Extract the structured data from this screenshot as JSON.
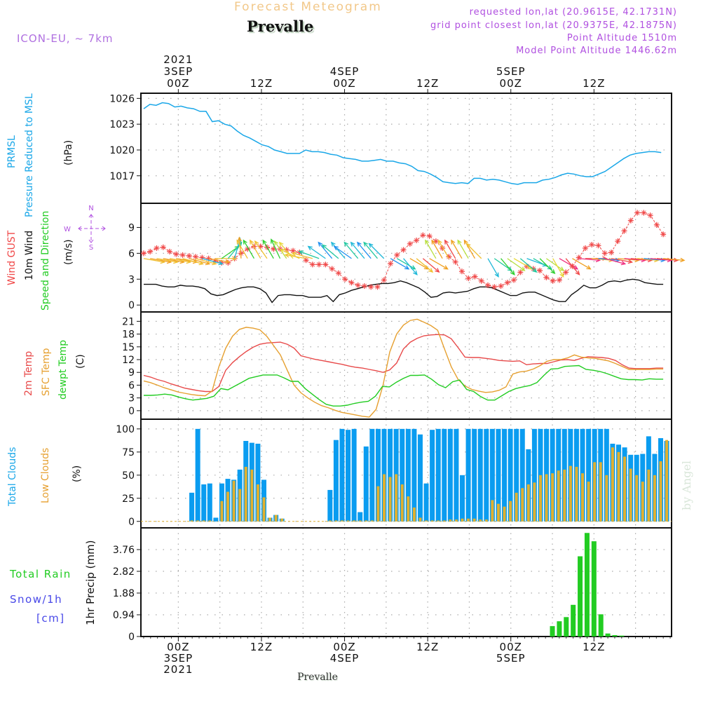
{
  "header": {
    "title": "Forecast Meteogram",
    "station": "Prevalle",
    "model": "ICON-EU, ~ 7km",
    "requested": "requested lon,lat (20.9615E, 42.1731N)",
    "gridpoint": "grid point closest lon,lat (20.9375E, 42.1875N)",
    "point_altitude": "Point Altitude 1510m",
    "model_altitude": "Model Point Altitude 1446.62m"
  },
  "time_axis": {
    "top_labels": [
      {
        "hour": 0,
        "lines": [
          "2021",
          "3SEP",
          "00Z"
        ]
      },
      {
        "hour": 12,
        "lines": [
          "12Z"
        ]
      },
      {
        "hour": 24,
        "lines": [
          "4SEP",
          "00Z"
        ]
      },
      {
        "hour": 36,
        "lines": [
          "12Z"
        ]
      },
      {
        "hour": 48,
        "lines": [
          "5SEP",
          "00Z"
        ]
      },
      {
        "hour": 60,
        "lines": [
          "12Z"
        ]
      }
    ],
    "bottom_labels": [
      {
        "hour": 0,
        "lines": [
          "00Z",
          "3SEP",
          "2021"
        ]
      },
      {
        "hour": 12,
        "lines": [
          "12Z"
        ]
      },
      {
        "hour": 24,
        "lines": [
          "00Z",
          "4SEP"
        ]
      },
      {
        "hour": 36,
        "lines": [
          "12Z"
        ]
      },
      {
        "hour": 48,
        "lines": [
          "00Z",
          "5SEP"
        ]
      },
      {
        "hour": 60,
        "lines": [
          "12Z"
        ]
      }
    ],
    "first_hour": -5,
    "last_hour": 70,
    "axis_range_hours": [
      -5.4,
      71.2
    ]
  },
  "labels": {
    "pressure": {
      "line1": "PRMSL",
      "line2": "Pressure Reduced to MSL",
      "unit": "(hPa)",
      "color": "#1aa7e8"
    },
    "wind": {
      "gust": "Wind GUST",
      "wind10": "10m Wind",
      "speeddir": "Speed and Direction",
      "unit": "(m/s)",
      "compass": {
        "n": "N",
        "s": "S",
        "w": "W",
        "e": "E"
      }
    },
    "temp": {
      "t2m": "2m Temp",
      "sfc": "SFC Temp",
      "dewpt": "dewpt Temp",
      "unit": "(C)"
    },
    "clouds": {
      "total": "Total Clouds",
      "low": "Low Clouds",
      "unit": "(%)"
    },
    "precip": {
      "rain": "Total   Rain",
      "snow": "Snow/1h",
      "snowunit": "[cm]",
      "axis": "1hr Precip (mm)"
    },
    "footer": "Prevalle",
    "credit": "by Angel"
  },
  "colors": {
    "pressure": "#1aa7e8",
    "gust": "#f04848",
    "wind10": "#111111",
    "t2m": "#e84a4a",
    "sfc": "#e6a030",
    "dewpt": "#22cc22",
    "total_clouds": "#0a9cf0",
    "low_clouds": "#e0b030",
    "rain": "#22cc22",
    "snow": "#4848e8",
    "info": "#b050e0"
  },
  "chart_data": [
    {
      "type": "line",
      "title": "PRMSL Pressure Reduced to MSL",
      "ylabel": "(hPa)",
      "yticks": [
        1017,
        1020,
        1023,
        1026
      ],
      "ylim": [
        1013.8,
        1026.6
      ],
      "series": [
        {
          "name": "PRMSL",
          "values": [
            1024.8,
            1025.3,
            1025.2,
            1025.5,
            1025.4,
            1025.0,
            1025.1,
            1024.9,
            1024.8,
            1024.5,
            1024.5,
            1023.3,
            1023.4,
            1023.0,
            1022.8,
            1022.2,
            1021.7,
            1021.4,
            1021.0,
            1020.6,
            1020.4,
            1020.0,
            1019.8,
            1019.6,
            1019.6,
            1019.6,
            1020.0,
            1019.8,
            1019.8,
            1019.7,
            1019.5,
            1019.4,
            1019.1,
            1019.0,
            1018.9,
            1018.7,
            1018.7,
            1018.8,
            1018.9,
            1018.7,
            1018.7,
            1018.5,
            1018.4,
            1018.1,
            1017.6,
            1017.5,
            1017.2,
            1016.8,
            1016.3,
            1016.2,
            1016.1,
            1016.2,
            1016.1,
            1016.7,
            1016.7,
            1016.5,
            1016.6,
            1016.5,
            1016.3,
            1016.1,
            1016.0,
            1016.2,
            1016.2,
            1016.2,
            1016.5,
            1016.6,
            1016.8,
            1017.1,
            1017.3,
            1017.2,
            1017.0,
            1016.9,
            1016.9,
            1017.2,
            1017.5,
            1018.0,
            1018.5,
            1019.0,
            1019.4,
            1019.6,
            1019.7,
            1019.8,
            1019.8,
            1019.7
          ],
          "x_hours_start": -5,
          "x_step_hours": 0.9
        }
      ]
    },
    {
      "type": "line",
      "title": "Wind GUST / 10m Wind Speed and Direction",
      "ylabel": "(m/s)",
      "yticks": [
        0,
        3,
        6,
        9
      ],
      "ylim": [
        -0.8,
        11.8
      ],
      "series": [
        {
          "name": "Wind GUST",
          "values": [
            6.0,
            6.2,
            6.6,
            6.7,
            6.2,
            5.9,
            5.8,
            5.7,
            5.6,
            5.5,
            5.4,
            5.1,
            4.9,
            4.9,
            5.4,
            6.0,
            6.5,
            6.8,
            6.8,
            6.7,
            6.5,
            6.5,
            6.4,
            6.3,
            6.1,
            5.2,
            4.7,
            4.7,
            4.7,
            4.2,
            3.7,
            3.0,
            2.6,
            2.3,
            2.2,
            2.1,
            2.1,
            2.9,
            4.8,
            5.8,
            6.4,
            7.1,
            7.5,
            8.1,
            8.0,
            7.4,
            6.6,
            5.6,
            5.0,
            3.9,
            3.1,
            3.3,
            2.8,
            2.3,
            2.1,
            2.2,
            2.6,
            2.9,
            3.8,
            4.5,
            4.2,
            4.0,
            3.2,
            2.8,
            2.9,
            3.8,
            4.5,
            5.5,
            6.6,
            7.0,
            6.9,
            6.0,
            6.1,
            7.4,
            8.6,
            9.8,
            10.7,
            10.7,
            10.4,
            9.3,
            8.2
          ]
        },
        {
          "name": "10m Wind",
          "values": [
            2.4,
            2.4,
            2.4,
            2.2,
            2.1,
            2.1,
            2.3,
            2.2,
            2.2,
            2.1,
            1.9,
            1.3,
            1.1,
            1.2,
            1.5,
            1.8,
            2.0,
            2.1,
            2.1,
            1.9,
            1.4,
            0.3,
            1.1,
            1.2,
            1.2,
            1.1,
            1.1,
            0.9,
            0.9,
            0.9,
            1.1,
            0.4,
            1.2,
            1.4,
            1.7,
            1.9,
            2.1,
            2.3,
            2.4,
            2.5,
            2.5,
            2.6,
            2.8,
            2.6,
            2.3,
            2.0,
            1.5,
            0.9,
            1.0,
            1.4,
            1.5,
            1.4,
            1.5,
            1.6,
            1.9,
            2.1,
            2.1,
            2.0,
            1.7,
            1.4,
            1.1,
            1.1,
            1.4,
            1.5,
            1.5,
            1.2,
            0.9,
            0.6,
            0.4,
            0.4,
            1.2,
            1.7,
            2.3,
            2.0,
            2.0,
            2.3,
            2.7,
            2.8,
            2.7,
            2.9,
            3.0,
            2.9,
            2.6,
            2.5,
            2.4,
            2.4
          ]
        }
      ],
      "arrows_note": "Colored wind direction arrows along the 10m wind level; colors vary by speed (yellow/orange → green/cyan → blue/magenta)",
      "arrow_directions_deg": [
        280,
        280,
        280,
        280,
        280,
        280,
        285,
        285,
        285,
        285,
        280,
        270,
        235,
        220,
        195,
        175,
        150,
        150,
        150,
        145,
        150,
        155,
        145,
        140,
        115,
        100,
        105,
        110,
        125,
        140,
        130,
        140,
        125,
        140,
        140,
        140,
        140,
        135,
        300,
        300,
        320,
        300,
        310,
        310,
        300,
        150,
        150,
        150,
        150,
        150,
        150,
        150,
        135,
        330,
        305,
        320,
        305,
        300,
        310,
        290,
        300,
        315,
        305,
        330,
        300,
        320,
        300,
        275,
        270,
        275,
        275,
        285,
        280,
        275,
        275,
        275,
        275,
        275,
        275,
        275,
        275
      ]
    },
    {
      "type": "line",
      "title": "2m Temp / SFC Temp / dewpt Temp",
      "ylabel": "(C)",
      "yticks": [
        0,
        3,
        6,
        9,
        12,
        15,
        18,
        21
      ],
      "ylim": [
        -2,
        23
      ],
      "series": [
        {
          "name": "2m Temp",
          "values": [
            8.3,
            7.9,
            7.3,
            6.9,
            6.3,
            5.8,
            5.3,
            5.0,
            4.7,
            4.5,
            4.5,
            5.7,
            9.5,
            11.3,
            12.7,
            13.9,
            14.9,
            15.6,
            15.9,
            16.0,
            16.1,
            15.6,
            14.7,
            12.9,
            12.5,
            12.1,
            11.8,
            11.5,
            11.2,
            10.9,
            10.5,
            10.2,
            10.0,
            9.7,
            9.4,
            9.0,
            9.6,
            11.2,
            14.5,
            16.1,
            17.0,
            17.6,
            17.8,
            17.9,
            17.8,
            16.9,
            14.8,
            12.6,
            12.5,
            12.5,
            12.3,
            12.1,
            11.8,
            11.7,
            11.6,
            11.7,
            10.8,
            11.0,
            11.1,
            11.1,
            11.5,
            11.9,
            12.0,
            11.8,
            12.3,
            12.7,
            12.6,
            12.5,
            12.3,
            11.8,
            10.8,
            10.0,
            9.9,
            9.9,
            9.9,
            10.0,
            10.0
          ]
        },
        {
          "name": "SFC Temp",
          "values": [
            7.0,
            6.6,
            6.0,
            5.4,
            4.9,
            4.4,
            4.1,
            3.8,
            3.6,
            3.5,
            4.6,
            10.3,
            14.7,
            17.5,
            19.1,
            19.6,
            19.4,
            19.0,
            17.5,
            15.3,
            13.1,
            9.5,
            6.0,
            4.2,
            3.0,
            2.0,
            1.2,
            0.7,
            0.1,
            -0.4,
            -0.7,
            -1.0,
            -1.3,
            -1.5,
            0.3,
            5.9,
            13.8,
            18.0,
            20.1,
            21.2,
            21.5,
            20.8,
            20.0,
            18.9,
            14.5,
            10.3,
            7.3,
            5.8,
            5.0,
            4.6,
            4.3,
            4.4,
            4.8,
            5.6,
            8.6,
            9.1,
            9.3,
            9.8,
            10.6,
            11.6,
            12.0,
            12.0,
            12.4,
            13.1,
            12.6,
            12.4,
            12.3,
            12.0,
            11.7,
            11.1,
            10.4,
            9.7,
            9.7,
            9.7,
            9.7,
            9.8,
            9.8
          ]
        },
        {
          "name": "dewpt Temp",
          "values": [
            3.6,
            3.6,
            3.7,
            3.9,
            3.7,
            3.2,
            2.8,
            2.5,
            2.7,
            2.9,
            3.4,
            5.2,
            4.9,
            5.8,
            6.7,
            7.6,
            8.0,
            8.4,
            8.4,
            8.4,
            7.7,
            6.9,
            6.9,
            5.2,
            3.9,
            2.6,
            1.5,
            1.1,
            1.1,
            1.3,
            1.7,
            2.0,
            2.2,
            3.4,
            5.7,
            5.6,
            6.7,
            7.6,
            8.3,
            8.3,
            8.4,
            7.4,
            6.1,
            5.4,
            6.8,
            7.2,
            5.0,
            4.5,
            3.3,
            2.5,
            2.5,
            3.5,
            4.5,
            5.2,
            5.6,
            5.9,
            6.6,
            8.3,
            9.8,
            9.9,
            10.4,
            10.5,
            10.6,
            9.7,
            9.5,
            9.2,
            8.7,
            8.1,
            7.5,
            7.3,
            7.3,
            7.2,
            7.5,
            7.4,
            7.4
          ]
        }
      ]
    },
    {
      "type": "bar",
      "title": "Total Clouds / Low Clouds",
      "ylabel": "(%)",
      "yticks": [
        0,
        25,
        50,
        75,
        100
      ],
      "ylim": [
        -7,
        110
      ],
      "series": [
        {
          "name": "Total Clouds",
          "values": [
            0,
            0,
            0,
            0,
            0,
            0,
            0,
            0,
            31,
            100,
            40,
            41,
            4,
            41,
            46,
            45,
            56,
            87,
            85,
            84,
            45,
            4,
            7,
            3,
            0,
            0,
            0,
            0,
            0,
            0,
            0,
            34,
            88,
            100,
            99,
            100,
            10,
            81,
            100,
            100,
            100,
            100,
            100,
            100,
            100,
            100,
            94,
            41,
            99,
            100,
            100,
            100,
            100,
            50,
            100,
            100,
            100,
            100,
            100,
            100,
            100,
            100,
            100,
            100,
            78,
            100,
            100,
            100,
            100,
            100,
            100,
            100,
            100,
            100,
            100,
            100,
            100,
            100,
            84,
            83,
            80,
            72,
            72,
            73,
            92,
            73,
            90,
            87
          ]
        },
        {
          "name": "Low Clouds",
          "values": [
            0,
            0,
            0,
            0,
            0,
            0,
            0,
            0,
            1,
            1,
            1,
            1,
            0,
            22,
            32,
            44,
            35,
            59,
            56,
            40,
            26,
            4,
            7,
            3,
            0,
            0,
            0,
            0,
            0,
            0,
            0,
            1,
            1,
            1,
            1,
            1,
            1,
            1,
            1,
            38,
            51,
            48,
            51,
            40,
            27,
            15,
            4,
            1,
            1,
            1,
            1,
            2,
            2,
            3,
            3,
            3,
            2,
            2,
            23,
            19,
            16,
            22,
            31,
            36,
            40,
            42,
            50,
            51,
            52,
            55,
            56,
            60,
            59,
            52,
            43,
            64,
            64,
            50,
            80,
            75,
            70,
            57,
            50,
            43,
            56,
            50,
            65,
            88,
            86
          ]
        }
      ]
    },
    {
      "type": "bar",
      "title": "1hr Precip",
      "ylabel": "1hr Precip (mm)",
      "yticks": [
        0,
        0.94,
        1.88,
        2.82,
        3.76
      ],
      "ylim": [
        0,
        4.7
      ],
      "series": [
        {
          "name": "Total Rain",
          "values": [
            0,
            0,
            0,
            0,
            0,
            0,
            0,
            0,
            0,
            0,
            0,
            0,
            0,
            0,
            0,
            0,
            0,
            0,
            0,
            0,
            0,
            0,
            0,
            0,
            0,
            0,
            0,
            0,
            0,
            0,
            0,
            0,
            0,
            0,
            0,
            0,
            0,
            0,
            0,
            0,
            0,
            0,
            0,
            0,
            0,
            0,
            0,
            0,
            0,
            0,
            0,
            0,
            0,
            0,
            0,
            0,
            0,
            0,
            0,
            0.45,
            0.66,
            0.84,
            1.37,
            3.47,
            4.48,
            4.12,
            0.96,
            0.13,
            0.06,
            0.04,
            0,
            0,
            0,
            0,
            0,
            0
          ]
        },
        {
          "name": "Snow/1h",
          "values": []
        }
      ]
    }
  ]
}
